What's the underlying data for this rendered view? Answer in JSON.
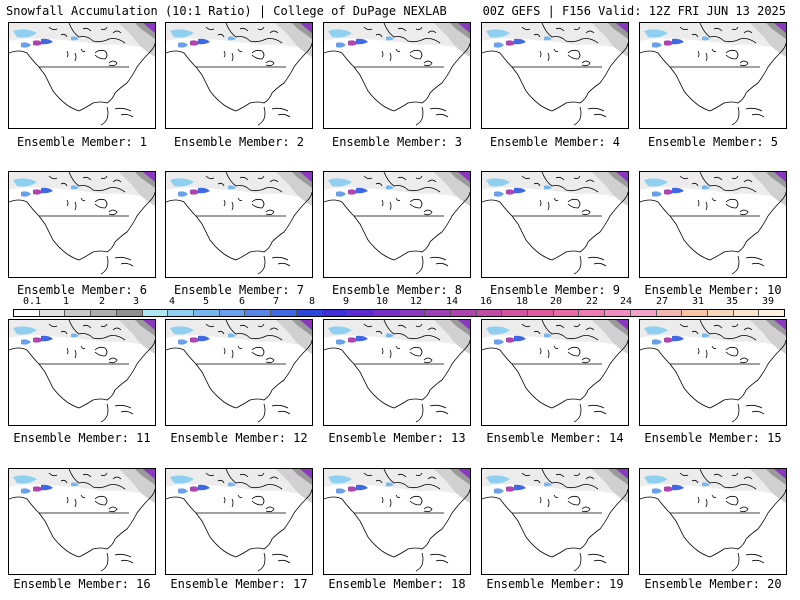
{
  "header": {
    "title_left": "Snowfall Accumulation (10:1 Ratio) | College of DuPage NEXLAB",
    "title_right": "00Z GEFS | F156 Valid: 12Z FRI JUN 13 2025"
  },
  "members": [
    "Ensemble Member: 1",
    "Ensemble Member: 2",
    "Ensemble Member: 3",
    "Ensemble Member: 4",
    "Ensemble Member: 5",
    "Ensemble Member: 6",
    "Ensemble Member: 7",
    "Ensemble Member: 8",
    "Ensemble Member: 9",
    "Ensemble Member: 10",
    "Ensemble Member: 11",
    "Ensemble Member: 12",
    "Ensemble Member: 13",
    "Ensemble Member: 14",
    "Ensemble Member: 15",
    "Ensemble Member: 16",
    "Ensemble Member: 17",
    "Ensemble Member: 18",
    "Ensemble Member: 19",
    "Ensemble Member: 20"
  ],
  "scale": {
    "ticks": [
      "0.1",
      "1",
      "2",
      "3",
      "4",
      "5",
      "6",
      "7",
      "8",
      "9",
      "10",
      "12",
      "14",
      "16",
      "18",
      "20",
      "22",
      "24",
      "27",
      "31",
      "35",
      "39"
    ],
    "colors": [
      "#ffffff",
      "#e3e3e3",
      "#c9c9c9",
      "#acacac",
      "#8e8e8e",
      "#aee6f2",
      "#8fd0f0",
      "#77b7ee",
      "#6aa0ea",
      "#5886e6",
      "#3f69e2",
      "#2a47dc",
      "#3d2fd8",
      "#5a2ad0",
      "#7630c8",
      "#8a38c0",
      "#9c3eb8",
      "#ae44b0",
      "#c04ca8",
      "#d254a0",
      "#e05aa0",
      "#e86aa8",
      "#ee7ab6",
      "#f08cc2",
      "#f2a2c8",
      "#f4b6b0",
      "#f6c6a4",
      "#f8d6b8",
      "#fae4cc",
      "#fcf0e0"
    ]
  }
}
